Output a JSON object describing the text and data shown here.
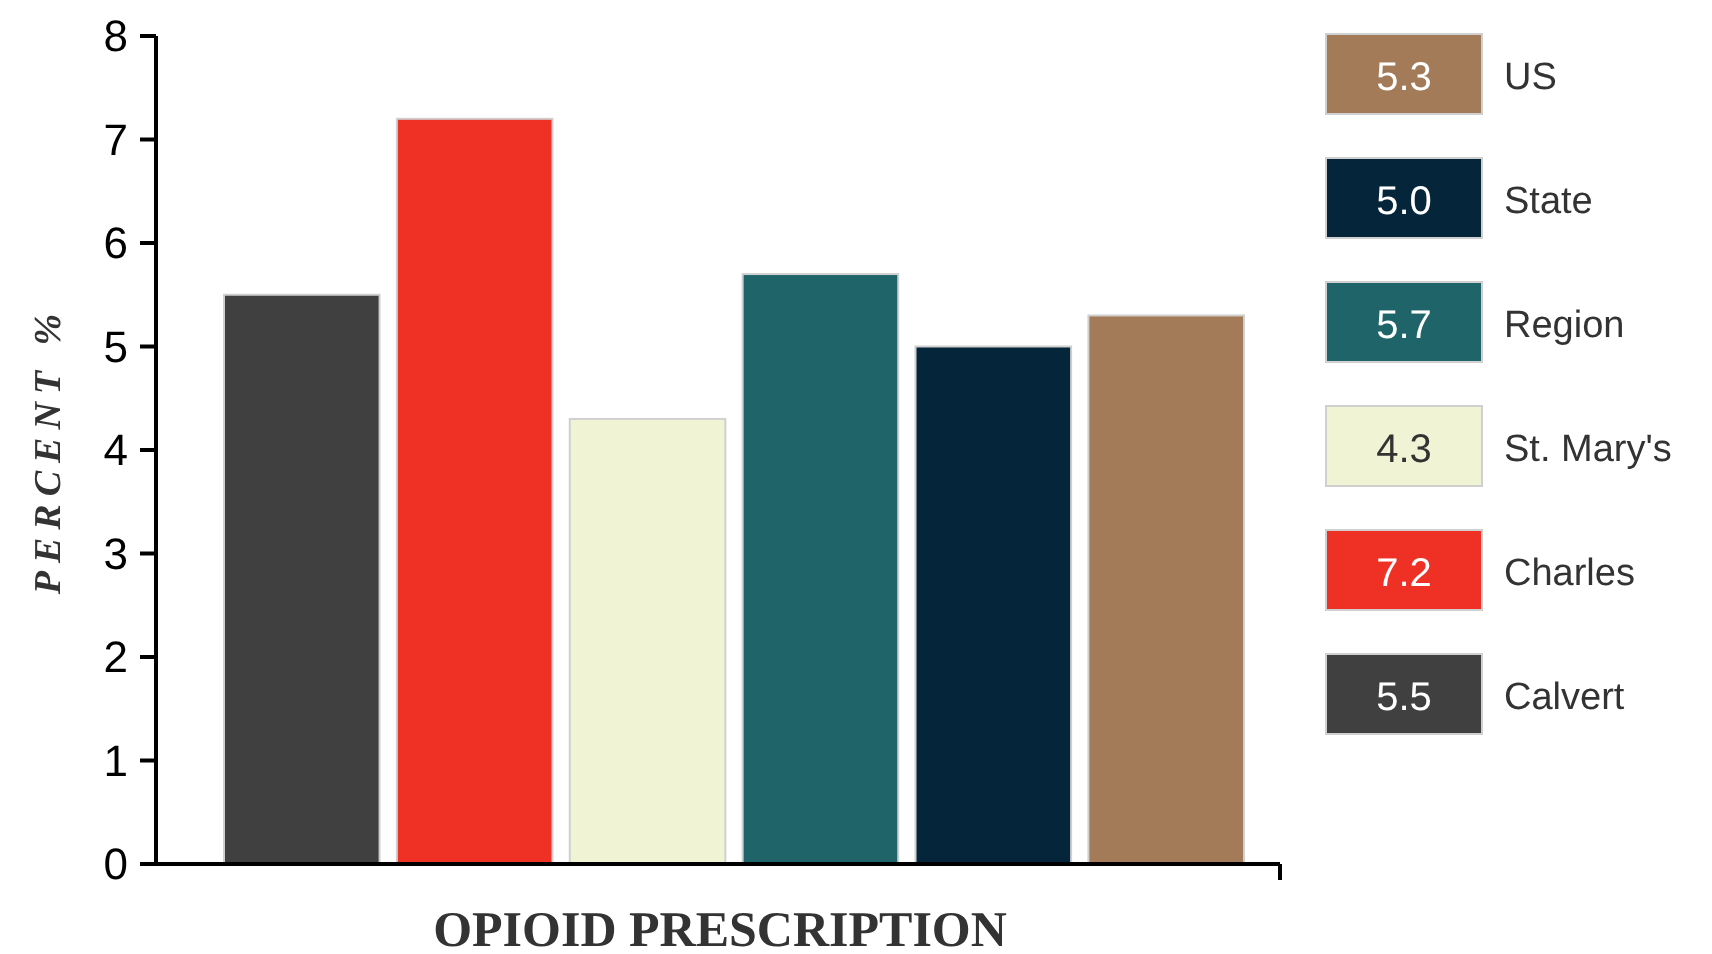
{
  "chart_data": {
    "type": "bar",
    "xlabel": "OPIOID PRESCRIPTION",
    "ylabel": "PERCENT %",
    "categories": [
      null,
      null,
      null,
      null,
      null,
      null
    ],
    "series": [
      {
        "name": "Calvert",
        "color": "#404040",
        "values": [
          5.5,
          null,
          null,
          null,
          null,
          null
        ]
      },
      {
        "name": "Charles",
        "color": "#ee3124",
        "values": [
          null,
          7.2,
          null,
          null,
          null,
          null
        ]
      },
      {
        "name": "St. Mary's",
        "color": "#f0f4d4",
        "values": [
          null,
          null,
          4.3,
          null,
          null,
          null
        ]
      },
      {
        "name": "Region",
        "color": "#1e6468",
        "values": [
          null,
          null,
          null,
          5.7,
          null,
          null
        ]
      },
      {
        "name": "State",
        "color": "#05263a",
        "values": [
          null,
          null,
          null,
          null,
          5.0,
          null
        ]
      },
      {
        "name": "US",
        "color": "#a37b58",
        "values": [
          null,
          null,
          null,
          null,
          null,
          5.3
        ]
      }
    ],
    "annotations": [
      "5.5",
      "7.2",
      "4.3",
      "5.7",
      "5.0",
      "5.3"
    ],
    "ylim": [
      0,
      8
    ],
    "yticks": [
      0,
      1,
      2,
      3,
      4,
      5,
      6,
      7,
      8
    ],
    "legend": "right"
  }
}
